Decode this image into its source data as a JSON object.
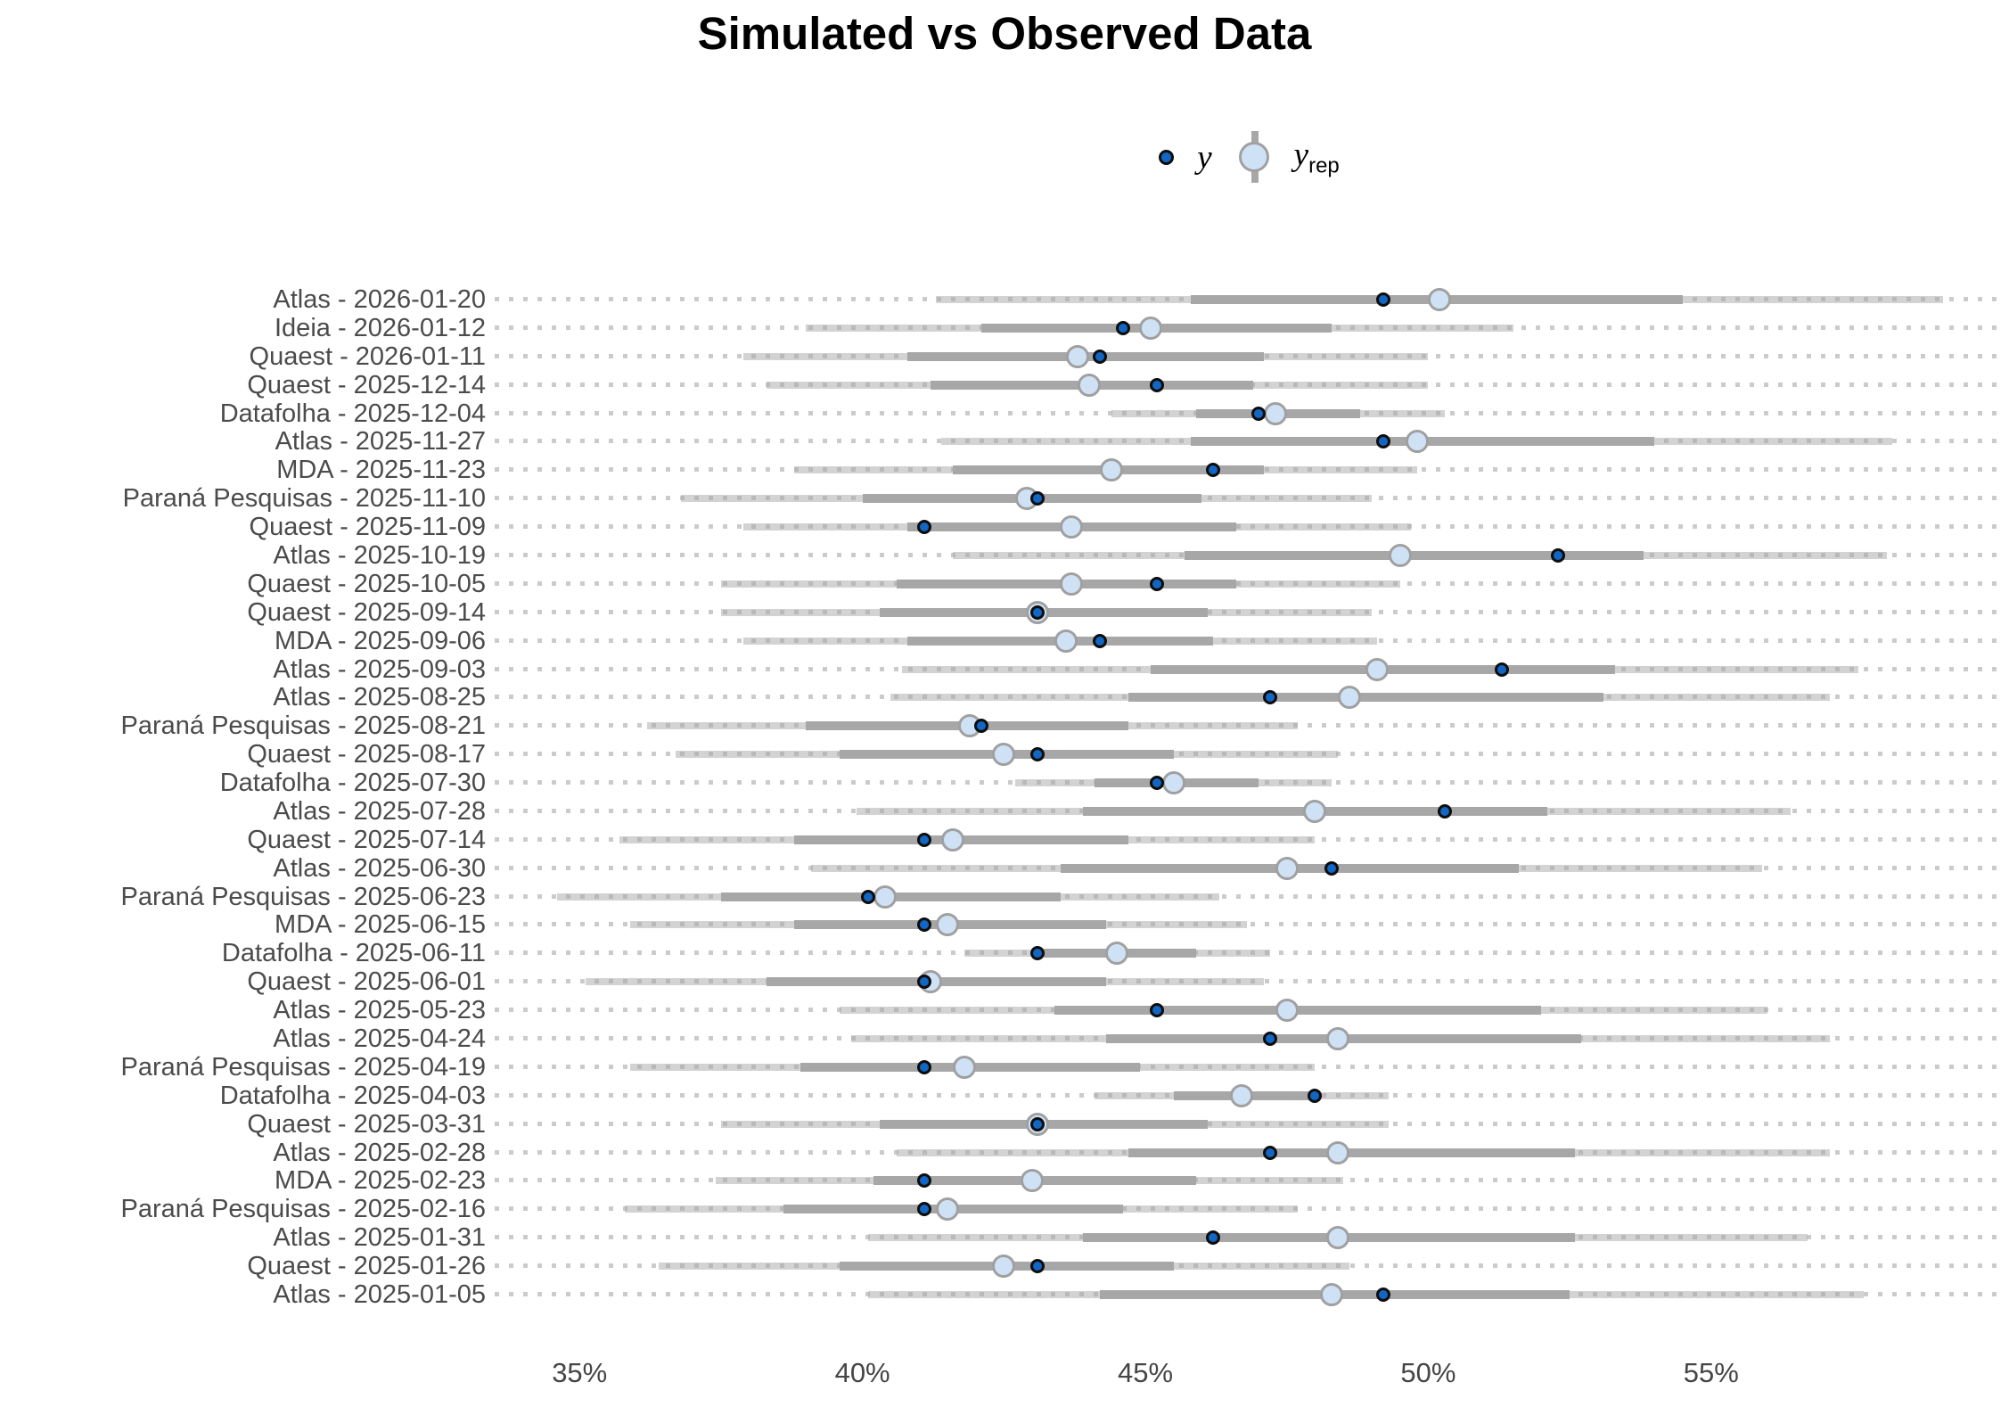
{
  "title": "Simulated vs Observed Data",
  "legend": {
    "y_label": "y",
    "yrep_label_base": "y",
    "yrep_label_sub": "rep"
  },
  "colors": {
    "y_point_fill": "#1266c4",
    "y_point_stroke": "#0d0d0d",
    "yrep_fill": "#cfe2f5",
    "yrep_stroke": "#a0a0a0",
    "inner_interval": "#a7a7a7",
    "outer_interval": "#d4d4d4",
    "gridline_dots": "#cbcbcb",
    "axis_text": "#4b4b4b"
  },
  "x_axis": {
    "unit": "percent",
    "domain_min": 33.5,
    "domain_max": 60.17,
    "ticks": [
      {
        "value": 35,
        "label": "35%"
      },
      {
        "value": 40,
        "label": "40%"
      },
      {
        "value": 45,
        "label": "45%"
      },
      {
        "value": 50,
        "label": "50%"
      },
      {
        "value": 55,
        "label": "55%"
      }
    ]
  },
  "chart_data": {
    "type": "interval-dot-ppc",
    "description": "Posterior predictive check: observed poll result y (dark dot) vs simulated y_rep median (light circle) with inner (thick) and outer (thin) predictive intervals, values in percent.",
    "legend_entries": [
      "y",
      "y_rep"
    ],
    "rows": [
      {
        "label": "Atlas - 2026-01-20",
        "y": 49.2,
        "y_rep": 50.2,
        "inner": [
          45.8,
          54.5
        ],
        "outer": [
          41.3,
          59.1
        ]
      },
      {
        "label": "Ideia - 2026-01-12",
        "y": 44.6,
        "y_rep": 45.1,
        "inner": [
          42.1,
          48.3
        ],
        "outer": [
          39.0,
          51.5
        ]
      },
      {
        "label": "Quaest - 2026-01-11",
        "y": 44.2,
        "y_rep": 43.8,
        "inner": [
          40.8,
          47.1
        ],
        "outer": [
          37.9,
          50.0
        ]
      },
      {
        "label": "Quaest - 2025-12-14",
        "y": 45.2,
        "y_rep": 44.0,
        "inner": [
          41.2,
          46.9
        ],
        "outer": [
          38.3,
          50.0
        ]
      },
      {
        "label": "Datafolha - 2025-12-04",
        "y": 47.0,
        "y_rep": 47.3,
        "inner": [
          45.9,
          48.8
        ],
        "outer": [
          44.4,
          50.3
        ]
      },
      {
        "label": "Atlas - 2025-11-27",
        "y": 49.2,
        "y_rep": 49.8,
        "inner": [
          45.8,
          54.0
        ],
        "outer": [
          41.4,
          58.2
        ]
      },
      {
        "label": "MDA - 2025-11-23",
        "y": 46.2,
        "y_rep": 44.4,
        "inner": [
          41.6,
          47.1
        ],
        "outer": [
          38.8,
          49.8
        ]
      },
      {
        "label": "Paraná Pesquisas - 2025-11-10",
        "y": 43.1,
        "y_rep": 42.9,
        "inner": [
          40.0,
          46.0
        ],
        "outer": [
          36.8,
          49.0
        ]
      },
      {
        "label": "Quaest - 2025-11-09",
        "y": 41.1,
        "y_rep": 43.7,
        "inner": [
          40.8,
          46.6
        ],
        "outer": [
          37.9,
          49.7
        ]
      },
      {
        "label": "Atlas - 2025-10-19",
        "y": 52.3,
        "y_rep": 49.5,
        "inner": [
          45.7,
          53.8
        ],
        "outer": [
          41.6,
          58.1
        ]
      },
      {
        "label": "Quaest - 2025-10-05",
        "y": 45.2,
        "y_rep": 43.7,
        "inner": [
          40.6,
          46.6
        ],
        "outer": [
          37.5,
          49.5
        ]
      },
      {
        "label": "Quaest - 2025-09-14",
        "y": 43.1,
        "y_rep": 43.1,
        "inner": [
          40.3,
          46.1
        ],
        "outer": [
          37.5,
          49.0
        ]
      },
      {
        "label": "MDA - 2025-09-06",
        "y": 44.2,
        "y_rep": 43.6,
        "inner": [
          40.8,
          46.2
        ],
        "outer": [
          37.9,
          49.1
        ]
      },
      {
        "label": "Atlas - 2025-09-03",
        "y": 51.3,
        "y_rep": 49.1,
        "inner": [
          45.1,
          53.3
        ],
        "outer": [
          40.7,
          57.6
        ]
      },
      {
        "label": "Atlas - 2025-08-25",
        "y": 47.2,
        "y_rep": 48.6,
        "inner": [
          44.7,
          53.1
        ],
        "outer": [
          40.5,
          57.1
        ]
      },
      {
        "label": "Paraná Pesquisas - 2025-08-21",
        "y": 42.1,
        "y_rep": 41.9,
        "inner": [
          39.0,
          44.7
        ],
        "outer": [
          36.2,
          47.7
        ]
      },
      {
        "label": "Quaest - 2025-08-17",
        "y": 43.1,
        "y_rep": 42.5,
        "inner": [
          39.6,
          45.5
        ],
        "outer": [
          36.7,
          48.4
        ]
      },
      {
        "label": "Datafolha - 2025-07-30",
        "y": 45.2,
        "y_rep": 45.5,
        "inner": [
          44.1,
          47.0
        ],
        "outer": [
          42.7,
          48.3
        ]
      },
      {
        "label": "Atlas - 2025-07-28",
        "y": 50.3,
        "y_rep": 48.0,
        "inner": [
          43.9,
          52.1
        ],
        "outer": [
          39.9,
          56.4
        ]
      },
      {
        "label": "Quaest - 2025-07-14",
        "y": 41.1,
        "y_rep": 41.6,
        "inner": [
          38.8,
          44.7
        ],
        "outer": [
          35.7,
          48.0
        ]
      },
      {
        "label": "Atlas - 2025-06-30",
        "y": 48.3,
        "y_rep": 47.5,
        "inner": [
          43.5,
          51.6
        ],
        "outer": [
          39.1,
          55.9
        ]
      },
      {
        "label": "Paraná Pesquisas - 2025-06-23",
        "y": 40.1,
        "y_rep": 40.4,
        "inner": [
          37.5,
          43.5
        ],
        "outer": [
          34.6,
          46.3
        ]
      },
      {
        "label": "MDA - 2025-06-15",
        "y": 41.1,
        "y_rep": 41.5,
        "inner": [
          38.8,
          44.3
        ],
        "outer": [
          35.9,
          46.8
        ]
      },
      {
        "label": "Datafolha - 2025-06-11",
        "y": 43.1,
        "y_rep": 44.5,
        "inner": [
          43.2,
          45.9
        ],
        "outer": [
          41.8,
          47.2
        ]
      },
      {
        "label": "Quaest - 2025-06-01",
        "y": 41.1,
        "y_rep": 41.2,
        "inner": [
          38.3,
          44.3
        ],
        "outer": [
          35.1,
          47.1
        ]
      },
      {
        "label": "Atlas - 2025-05-23",
        "y": 45.2,
        "y_rep": 47.5,
        "inner": [
          43.4,
          52.0
        ],
        "outer": [
          39.6,
          56.0
        ]
      },
      {
        "label": "Atlas - 2025-04-24",
        "y": 47.2,
        "y_rep": 48.4,
        "inner": [
          44.3,
          52.7
        ],
        "outer": [
          39.8,
          57.1
        ]
      },
      {
        "label": "Paraná Pesquisas - 2025-04-19",
        "y": 41.1,
        "y_rep": 41.8,
        "inner": [
          38.9,
          44.9
        ],
        "outer": [
          35.9,
          48.0
        ]
      },
      {
        "label": "Datafolha - 2025-04-03",
        "y": 48.0,
        "y_rep": 46.7,
        "inner": [
          45.5,
          48.0
        ],
        "outer": [
          44.1,
          49.3
        ]
      },
      {
        "label": "Quaest - 2025-03-31",
        "y": 43.1,
        "y_rep": 43.1,
        "inner": [
          40.3,
          46.1
        ],
        "outer": [
          37.5,
          49.3
        ]
      },
      {
        "label": "Atlas - 2025-02-28",
        "y": 47.2,
        "y_rep": 48.4,
        "inner": [
          44.7,
          52.6
        ],
        "outer": [
          40.6,
          57.1
        ]
      },
      {
        "label": "MDA - 2025-02-23",
        "y": 41.1,
        "y_rep": 43.0,
        "inner": [
          40.2,
          45.9
        ],
        "outer": [
          37.4,
          48.5
        ]
      },
      {
        "label": "Paraná Pesquisas - 2025-02-16",
        "y": 41.1,
        "y_rep": 41.5,
        "inner": [
          38.6,
          44.6
        ],
        "outer": [
          35.8,
          47.7
        ]
      },
      {
        "label": "Atlas - 2025-01-31",
        "y": 46.2,
        "y_rep": 48.4,
        "inner": [
          43.9,
          52.6
        ],
        "outer": [
          40.1,
          56.7
        ]
      },
      {
        "label": "Quaest - 2025-01-26",
        "y": 43.1,
        "y_rep": 42.5,
        "inner": [
          39.6,
          45.5
        ],
        "outer": [
          36.4,
          48.6
        ]
      },
      {
        "label": "Atlas - 2025-01-05",
        "y": 49.2,
        "y_rep": 48.3,
        "inner": [
          44.2,
          52.5
        ],
        "outer": [
          40.1,
          57.7
        ]
      }
    ]
  }
}
